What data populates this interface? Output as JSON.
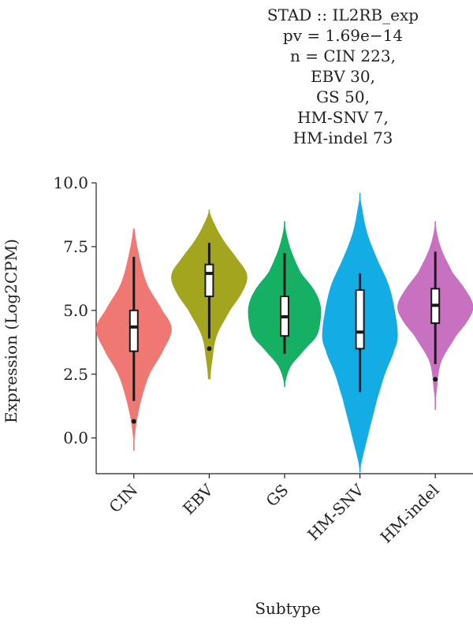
{
  "chart_data": {
    "type": "violin",
    "title_lines": [
      "STAD :: IL2RB_exp",
      "pv = 1.69e−14",
      "n = CIN 223,",
      "EBV 30,",
      "GS 50,",
      "HM-SNV 7,",
      "HM-indel 73"
    ],
    "xlabel": "Subtype",
    "ylabel": "Expression (Log2CPM)",
    "ylim": [
      -1.4,
      10.0
    ],
    "yticks": [
      "0.0",
      "2.5",
      "5.0",
      "7.5",
      "10.0"
    ],
    "grid": false,
    "categories": [
      "CIN",
      "EBV",
      "GS",
      "HM-SNV",
      "HM-indel"
    ],
    "groups": [
      {
        "label": "CIN",
        "color": "#F07872",
        "violin_min": -0.5,
        "violin_max": 8.2,
        "q1": 3.4,
        "median": 4.35,
        "q3": 5.0,
        "whisker_low": 1.45,
        "whisker_high": 7.1,
        "outliers": [
          0.65
        ],
        "density": [
          [
            -0.5,
            0.0
          ],
          [
            0.5,
            0.06
          ],
          [
            1.5,
            0.2
          ],
          [
            2.5,
            0.42
          ],
          [
            3.5,
            0.8
          ],
          [
            4.3,
            1.0
          ],
          [
            5.0,
            0.75
          ],
          [
            6.0,
            0.36
          ],
          [
            7.0,
            0.16
          ],
          [
            8.2,
            0.02
          ]
        ]
      },
      {
        "label": "EBV",
        "color": "#A3A51F",
        "violin_min": 2.3,
        "violin_max": 8.95,
        "q1": 5.55,
        "median": 6.45,
        "q3": 6.8,
        "whisker_low": 3.9,
        "whisker_high": 7.65,
        "outliers": [
          3.5
        ],
        "density": [
          [
            2.3,
            0.03
          ],
          [
            3.0,
            0.08
          ],
          [
            4.0,
            0.2
          ],
          [
            5.0,
            0.55
          ],
          [
            5.8,
            0.9
          ],
          [
            6.4,
            1.0
          ],
          [
            7.0,
            0.75
          ],
          [
            7.7,
            0.4
          ],
          [
            8.4,
            0.14
          ],
          [
            8.95,
            0.0
          ]
        ]
      },
      {
        "label": "GS",
        "color": "#15B064",
        "violin_min": 2.0,
        "violin_max": 8.5,
        "q1": 4.0,
        "median": 4.75,
        "q3": 5.55,
        "whisker_low": 3.3,
        "whisker_high": 7.25,
        "outliers": [],
        "density": [
          [
            2.0,
            0.0
          ],
          [
            2.8,
            0.16
          ],
          [
            3.5,
            0.55
          ],
          [
            4.0,
            0.85
          ],
          [
            4.6,
            0.95
          ],
          [
            5.2,
            0.95
          ],
          [
            5.8,
            0.78
          ],
          [
            6.5,
            0.42
          ],
          [
            7.5,
            0.14
          ],
          [
            8.5,
            0.0
          ]
        ]
      },
      {
        "label": "HM-SNV",
        "color": "#14ACE4",
        "violin_min": -1.35,
        "violin_max": 9.6,
        "q1": 3.5,
        "median": 4.15,
        "q3": 5.8,
        "whisker_low": 1.8,
        "whisker_high": 6.45,
        "outliers": [],
        "density": [
          [
            -1.35,
            0.0
          ],
          [
            0.0,
            0.2
          ],
          [
            1.5,
            0.45
          ],
          [
            2.5,
            0.66
          ],
          [
            3.5,
            0.92
          ],
          [
            4.0,
            1.0
          ],
          [
            5.0,
            0.92
          ],
          [
            6.0,
            0.76
          ],
          [
            7.0,
            0.46
          ],
          [
            8.0,
            0.2
          ],
          [
            9.0,
            0.06
          ],
          [
            9.6,
            0.0
          ]
        ]
      },
      {
        "label": "HM-indel",
        "color": "#C771C0",
        "violin_min": 1.1,
        "violin_max": 8.5,
        "q1": 4.5,
        "median": 5.2,
        "q3": 5.85,
        "whisker_low": 2.9,
        "whisker_high": 7.3,
        "outliers": [
          2.3
        ],
        "density": [
          [
            1.1,
            0.0
          ],
          [
            2.0,
            0.05
          ],
          [
            3.0,
            0.16
          ],
          [
            4.0,
            0.55
          ],
          [
            4.7,
            0.9
          ],
          [
            5.2,
            1.0
          ],
          [
            5.8,
            0.8
          ],
          [
            6.5,
            0.45
          ],
          [
            7.5,
            0.14
          ],
          [
            8.5,
            0.0
          ]
        ]
      }
    ]
  }
}
